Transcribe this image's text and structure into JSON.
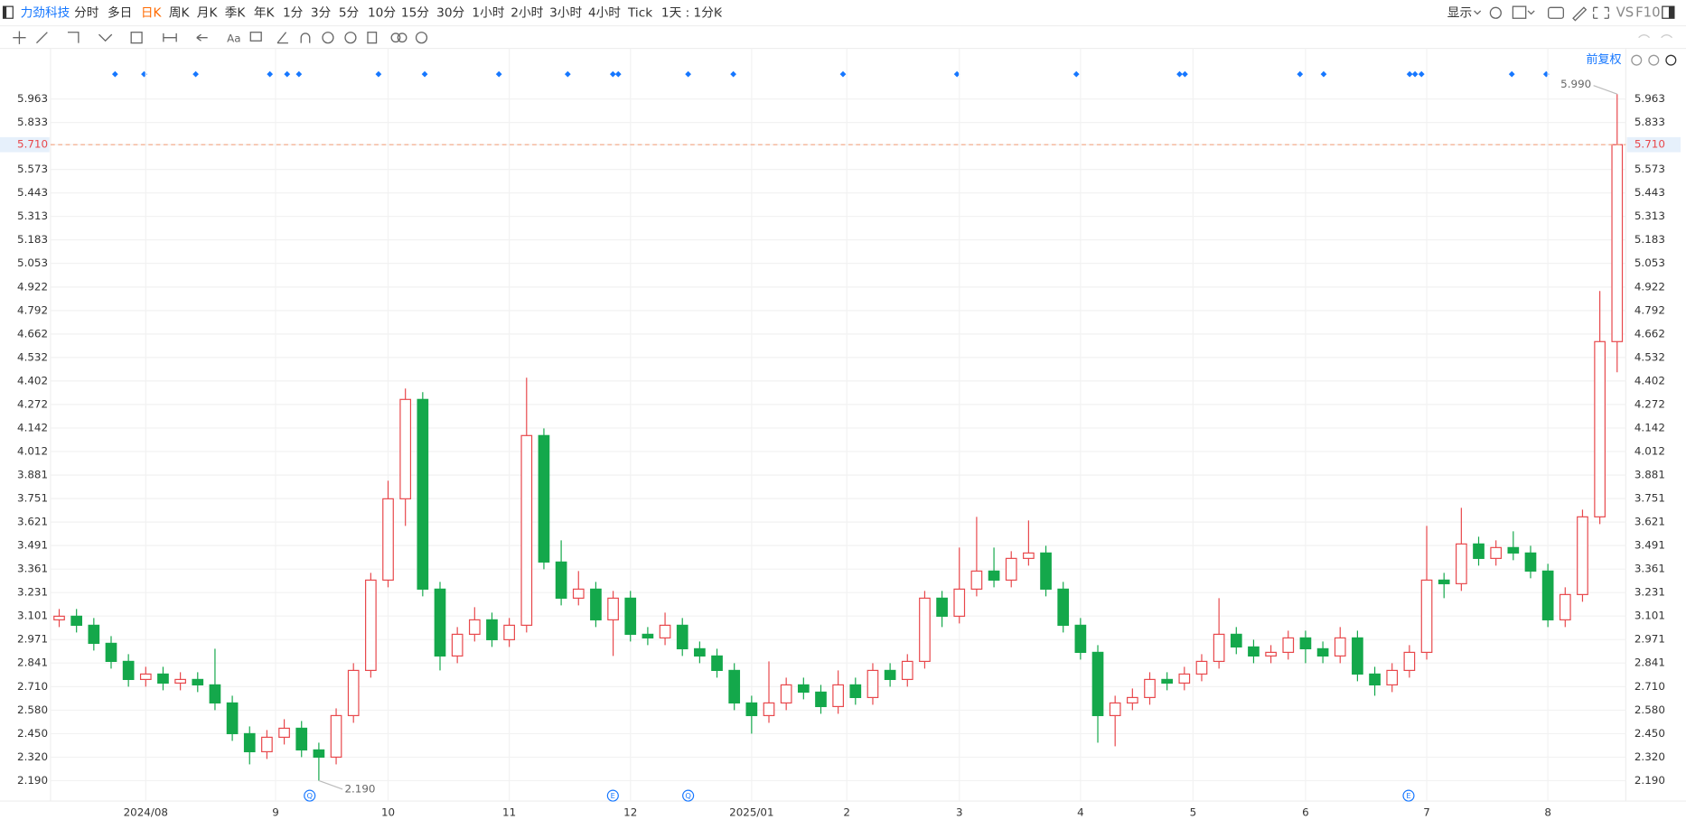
{
  "toolbar": {
    "stock": "力劲科技",
    "periods": [
      "分时",
      "多日",
      "日K",
      "周K",
      "月K",
      "季K",
      "年K",
      "1分",
      "3分",
      "5分",
      "10分",
      "15分",
      "30分",
      "1小时",
      "2小时",
      "3小时",
      "4小时",
      "Tick",
      "1天 : 1分K"
    ],
    "right": [
      "显示",
      "VS",
      "F10"
    ],
    "adjust": "前复权"
  },
  "events": [
    "Q",
    "E",
    "Q",
    "E"
  ],
  "chart_data": {
    "type": "candlestick",
    "up_color": "#e8474b",
    "down_color": "#14a84b",
    "grid": true,
    "ylim": [
      2.077,
      6.243
    ],
    "yticks": [
      {
        "value": 2.19,
        "label": "2.190"
      },
      {
        "value": 2.32,
        "label": "2.320"
      },
      {
        "value": 2.45,
        "label": "2.450"
      },
      {
        "value": 2.58,
        "label": "2.580"
      },
      {
        "value": 2.71,
        "label": "2.710"
      },
      {
        "value": 2.841,
        "label": "2.841"
      },
      {
        "value": 2.971,
        "label": "2.971"
      },
      {
        "value": 3.101,
        "label": "3.101"
      },
      {
        "value": 3.231,
        "label": "3.231"
      },
      {
        "value": 3.361,
        "label": "3.361"
      },
      {
        "value": 3.491,
        "label": "3.491"
      },
      {
        "value": 3.621,
        "label": "3.621"
      },
      {
        "value": 3.751,
        "label": "3.751"
      },
      {
        "value": 3.881,
        "label": "3.881"
      },
      {
        "value": 4.012,
        "label": "4.012"
      },
      {
        "value": 4.142,
        "label": "4.142"
      },
      {
        "value": 4.272,
        "label": "4.272"
      },
      {
        "value": 4.402,
        "label": "4.402"
      },
      {
        "value": 4.532,
        "label": "4.532"
      },
      {
        "value": 4.662,
        "label": "4.662"
      },
      {
        "value": 4.792,
        "label": "4.792"
      },
      {
        "value": 4.922,
        "label": "4.922"
      },
      {
        "value": 5.053,
        "label": "5.053"
      },
      {
        "value": 5.183,
        "label": "5.183"
      },
      {
        "value": 5.313,
        "label": "5.313"
      },
      {
        "value": 5.443,
        "label": "5.443"
      },
      {
        "value": 5.573,
        "label": "5.573"
      },
      {
        "value": 5.71,
        "label": "5.710"
      },
      {
        "value": 5.833,
        "label": "5.833"
      },
      {
        "value": 5.963,
        "label": "5.963"
      }
    ],
    "current_price": {
      "value": 5.71,
      "label": "5.710"
    },
    "xticks": [
      {
        "value": 5,
        "label": "2024/08"
      },
      {
        "value": 12.5,
        "label": "9"
      },
      {
        "value": 19,
        "label": "10"
      },
      {
        "value": 26,
        "label": "11"
      },
      {
        "value": 33,
        "label": "12"
      },
      {
        "value": 40,
        "label": "2025/01"
      },
      {
        "value": 45.5,
        "label": "2"
      },
      {
        "value": 52,
        "label": "3"
      },
      {
        "value": 59,
        "label": "4"
      },
      {
        "value": 65.5,
        "label": "5"
      },
      {
        "value": 72,
        "label": "6"
      },
      {
        "value": 79,
        "label": "7"
      },
      {
        "value": 86,
        "label": "8"
      }
    ],
    "annotations": [
      {
        "value": 5.99,
        "label": "5.990"
      },
      {
        "value": 2.19,
        "label": "2.190"
      }
    ],
    "open": [
      3.08,
      3.1,
      3.05,
      2.95,
      2.85,
      2.75,
      2.78,
      2.73,
      2.75,
      2.72,
      2.62,
      2.45,
      2.35,
      2.43,
      2.48,
      2.36,
      2.32,
      2.55,
      2.8,
      3.3,
      3.75,
      4.3,
      3.25,
      2.88,
      3.0,
      3.08,
      2.97,
      3.05,
      4.1,
      3.4,
      3.2,
      3.25,
      3.08,
      3.2,
      3.0,
      2.98,
      3.05,
      2.92,
      2.88,
      2.8,
      2.62,
      2.55,
      2.62,
      2.72,
      2.68,
      2.6,
      2.72,
      2.65,
      2.8,
      2.75,
      2.85,
      3.2,
      3.1,
      3.25,
      3.35,
      3.3,
      3.42,
      3.45,
      3.25,
      3.05,
      2.9,
      2.55,
      2.62,
      2.65,
      2.75,
      2.73,
      2.78,
      2.85,
      3.0,
      2.93,
      2.88,
      2.9,
      2.98,
      2.92,
      2.88,
      2.98,
      2.78,
      2.72,
      2.8,
      2.9,
      3.3,
      3.28,
      3.5,
      3.42,
      3.48,
      3.45,
      3.35,
      3.08,
      3.22,
      3.65,
      4.62
    ],
    "high": [
      3.14,
      3.14,
      3.09,
      2.99,
      2.89,
      2.82,
      2.82,
      2.79,
      2.79,
      2.92,
      2.66,
      2.49,
      2.47,
      2.53,
      2.52,
      2.4,
      2.59,
      2.84,
      3.34,
      3.85,
      4.36,
      4.34,
      3.29,
      3.04,
      3.15,
      3.12,
      3.09,
      4.42,
      4.14,
      3.52,
      3.35,
      3.29,
      3.24,
      3.24,
      3.04,
      3.12,
      3.09,
      2.96,
      2.92,
      2.84,
      2.66,
      2.85,
      2.76,
      2.76,
      2.72,
      2.8,
      2.76,
      2.84,
      2.84,
      2.89,
      3.24,
      3.24,
      3.48,
      3.65,
      3.48,
      3.46,
      3.63,
      3.49,
      3.29,
      3.09,
      2.94,
      2.66,
      2.7,
      2.79,
      2.79,
      2.82,
      2.89,
      3.2,
      3.04,
      2.97,
      2.94,
      3.02,
      3.02,
      2.96,
      3.04,
      3.02,
      2.82,
      2.84,
      2.94,
      3.6,
      3.34,
      3.7,
      3.54,
      3.52,
      3.57,
      3.49,
      3.39,
      3.26,
      3.69,
      4.9,
      5.99
    ],
    "low": [
      3.04,
      3.01,
      2.91,
      2.81,
      2.71,
      2.71,
      2.69,
      2.69,
      2.68,
      2.58,
      2.41,
      2.28,
      2.31,
      2.39,
      2.32,
      2.19,
      2.28,
      2.51,
      2.76,
      3.26,
      3.6,
      3.21,
      2.8,
      2.84,
      2.96,
      2.93,
      2.93,
      3.01,
      3.36,
      3.16,
      3.16,
      3.04,
      2.88,
      2.96,
      2.94,
      2.94,
      2.88,
      2.84,
      2.76,
      2.58,
      2.45,
      2.51,
      2.58,
      2.64,
      2.56,
      2.56,
      2.61,
      2.61,
      2.71,
      2.71,
      2.81,
      3.04,
      3.06,
      3.21,
      3.26,
      3.26,
      3.38,
      3.21,
      3.01,
      2.86,
      2.4,
      2.38,
      2.58,
      2.61,
      2.69,
      2.69,
      2.74,
      2.81,
      2.89,
      2.84,
      2.84,
      2.86,
      2.84,
      2.84,
      2.84,
      2.74,
      2.66,
      2.68,
      2.76,
      2.86,
      3.2,
      3.24,
      3.38,
      3.38,
      3.41,
      3.31,
      3.04,
      3.04,
      3.18,
      3.61,
      4.45
    ],
    "close": [
      3.1,
      3.05,
      2.95,
      2.85,
      2.75,
      2.78,
      2.73,
      2.75,
      2.72,
      2.62,
      2.45,
      2.35,
      2.43,
      2.48,
      2.36,
      2.32,
      2.55,
      2.8,
      3.3,
      3.75,
      4.3,
      3.25,
      2.88,
      3.0,
      3.08,
      2.97,
      3.05,
      4.1,
      3.4,
      3.2,
      3.25,
      3.08,
      3.2,
      3.0,
      2.98,
      3.05,
      2.92,
      2.88,
      2.8,
      2.62,
      2.55,
      2.62,
      2.72,
      2.68,
      2.6,
      2.72,
      2.65,
      2.8,
      2.75,
      2.85,
      3.2,
      3.1,
      3.25,
      3.35,
      3.3,
      3.42,
      3.45,
      3.25,
      3.05,
      2.9,
      2.55,
      2.62,
      2.65,
      2.75,
      2.73,
      2.78,
      2.85,
      3.0,
      2.93,
      2.88,
      2.9,
      2.98,
      2.92,
      2.88,
      2.98,
      2.78,
      2.72,
      2.8,
      2.9,
      3.3,
      3.28,
      3.5,
      3.42,
      3.48,
      3.45,
      3.35,
      3.08,
      3.22,
      3.65,
      4.62,
      5.71
    ]
  }
}
